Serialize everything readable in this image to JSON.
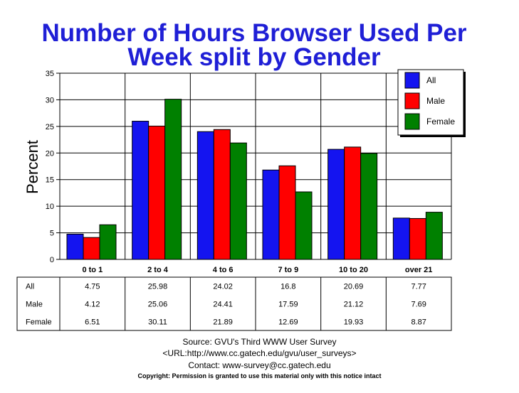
{
  "chart_data": {
    "type": "bar",
    "title_lines": [
      "Number of Hours Browser Used Per",
      "Week split by Gender"
    ],
    "ylabel": "Percent",
    "xlabel": "",
    "ylim": [
      0,
      35
    ],
    "yticks": [
      "0",
      "5",
      "10",
      "15",
      "20",
      "25",
      "30",
      "35"
    ],
    "grid": true,
    "legend_position": "top-right",
    "categories": [
      "0 to 1",
      "2 to 4",
      "4 to 6",
      "7 to 9",
      "10 to 20",
      "over 21"
    ],
    "series": [
      {
        "name": "All",
        "color": "#1414f0",
        "values": [
          4.75,
          25.98,
          24.02,
          16.8,
          20.69,
          7.77
        ],
        "labels": [
          "4.75",
          "25.98",
          "24.02",
          "16.8",
          "20.69",
          "7.77"
        ]
      },
      {
        "name": "Male",
        "color": "#ff0000",
        "values": [
          4.12,
          25.06,
          24.41,
          17.59,
          21.12,
          7.69
        ],
        "labels": [
          "4.12",
          "25.06",
          "24.41",
          "17.59",
          "21.12",
          "7.69"
        ]
      },
      {
        "name": "Female",
        "color": "#008000",
        "values": [
          6.51,
          30.11,
          21.89,
          12.69,
          19.93,
          8.87
        ],
        "labels": [
          "6.51",
          "30.11",
          "21.89",
          "12.69",
          "19.93",
          "8.87"
        ]
      }
    ]
  },
  "footer": {
    "source": "Source: GVU's Third WWW User Survey",
    "url": "<URL:http://www.cc.gatech.edu/gvu/user_surveys>",
    "contact": "Contact: www-survey@cc.gatech.edu",
    "copyright": "Copyright: Permission is granted to use this material only with this notice intact"
  }
}
